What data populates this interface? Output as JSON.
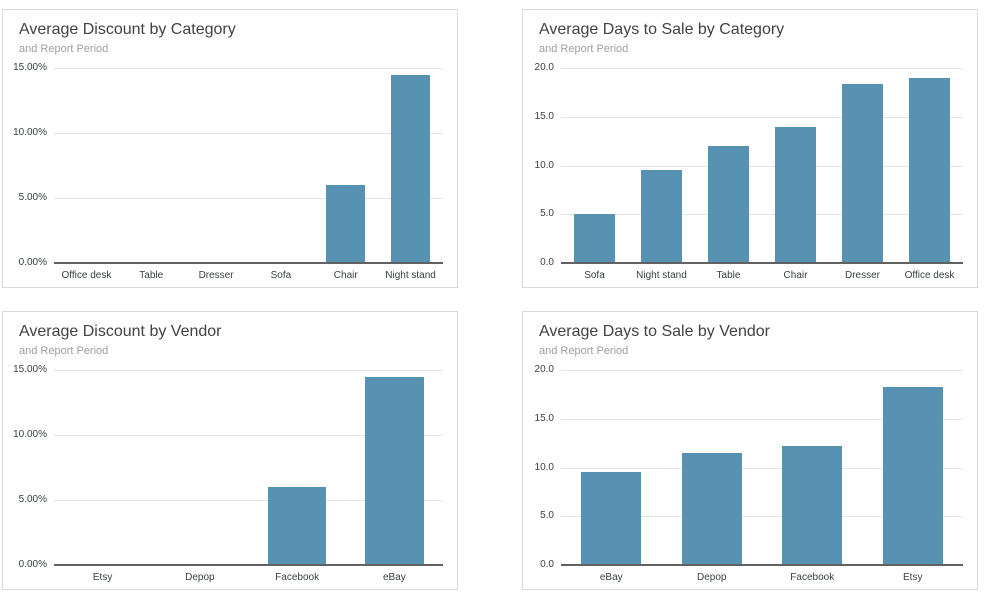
{
  "theme": {
    "bar_color": "#5892b2",
    "gridline_color": "#e3e3e3",
    "baseline_color": "#616161",
    "title_color": "#424242",
    "subtitle_color": "#9e9e9e",
    "label_color": "#3c4043",
    "card_border_color": "#d9d9d9"
  },
  "chart_data": [
    {
      "type": "bar",
      "title": "Average Discount by Category",
      "subtitle": "and Report Period",
      "categories": [
        "Office desk",
        "Table",
        "Dresser",
        "Sofa",
        "Chair",
        "Night stand"
      ],
      "values": [
        0,
        0,
        0,
        0,
        6.0,
        14.5
      ],
      "value_format": "percent",
      "ylim": [
        0,
        15
      ],
      "y_ticks": [
        {
          "value": 0,
          "label": "0.00%"
        },
        {
          "value": 5,
          "label": "5.00%"
        },
        {
          "value": 10,
          "label": "10.00%"
        },
        {
          "value": 15,
          "label": "15.00%"
        }
      ],
      "grid": true,
      "legend": "none"
    },
    {
      "type": "bar",
      "title": "Average Days to Sale by Category",
      "subtitle": "and Report Period",
      "categories": [
        "Sofa",
        "Night stand",
        "Table",
        "Chair",
        "Dresser",
        "Office desk"
      ],
      "values": [
        5.0,
        9.5,
        12.0,
        14.0,
        18.4,
        19.0
      ],
      "value_format": "days",
      "ylim": [
        0,
        20
      ],
      "y_ticks": [
        {
          "value": 0,
          "label": "0.0"
        },
        {
          "value": 5,
          "label": "5.0"
        },
        {
          "value": 10,
          "label": "10.0"
        },
        {
          "value": 15,
          "label": "15.0"
        },
        {
          "value": 20,
          "label": "20.0"
        }
      ],
      "grid": true,
      "legend": "none"
    },
    {
      "type": "bar",
      "title": "Average Discount by Vendor",
      "subtitle": "and Report Period",
      "categories": [
        "Etsy",
        "Depop",
        "Facebook",
        "eBay"
      ],
      "values": [
        0,
        0,
        6.0,
        14.5
      ],
      "value_format": "percent",
      "ylim": [
        0,
        15
      ],
      "y_ticks": [
        {
          "value": 0,
          "label": "0.00%"
        },
        {
          "value": 5,
          "label": "5.00%"
        },
        {
          "value": 10,
          "label": "10.00%"
        },
        {
          "value": 15,
          "label": "15.00%"
        }
      ],
      "grid": true,
      "legend": "none"
    },
    {
      "type": "bar",
      "title": "Average Days to Sale by Vendor",
      "subtitle": "and Report Period",
      "categories": [
        "eBay",
        "Depop",
        "Facebook",
        "Etsy"
      ],
      "values": [
        9.5,
        11.5,
        12.2,
        18.3
      ],
      "value_format": "days",
      "ylim": [
        0,
        20
      ],
      "y_ticks": [
        {
          "value": 0,
          "label": "0.0"
        },
        {
          "value": 5,
          "label": "5.0"
        },
        {
          "value": 10,
          "label": "10.0"
        },
        {
          "value": 15,
          "label": "15.0"
        },
        {
          "value": 20,
          "label": "20.0"
        }
      ],
      "grid": true,
      "legend": "none"
    }
  ]
}
